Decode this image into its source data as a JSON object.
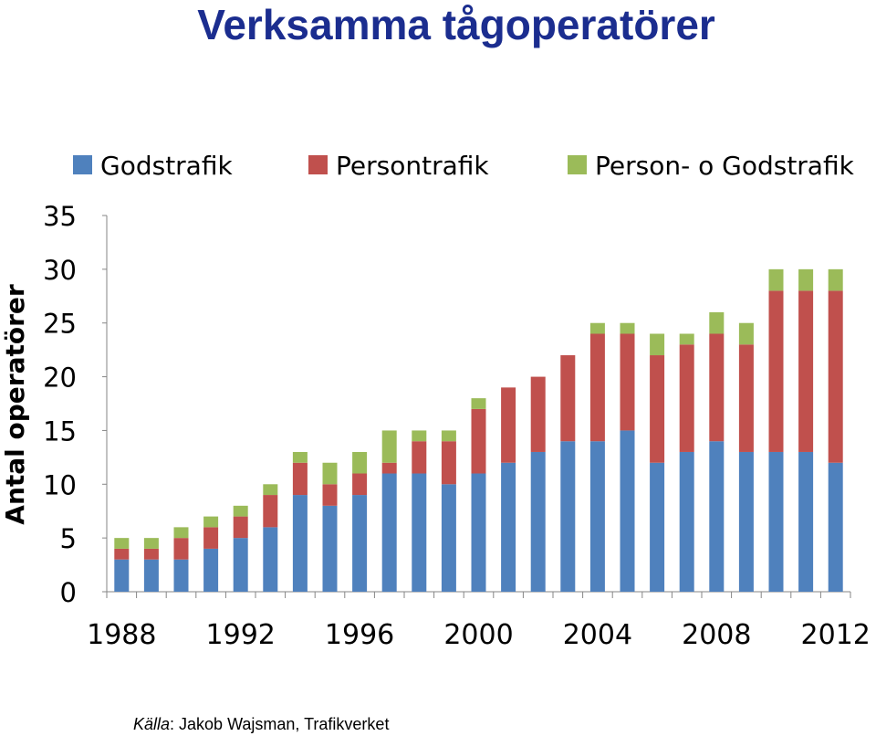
{
  "title": "Verksamma tågoperatörer",
  "source_label": "Källa",
  "source_text": ": Jakob Wajsman, Trafikverket",
  "colors": {
    "title": "#1b2d8f",
    "Godstrafik": "#4f81bd",
    "Persontrafik": "#c0504d",
    "Person- o Godstrafik": "#9bbb59"
  },
  "chart_data": {
    "type": "bar",
    "stacked": true,
    "ylabel": "Antal operatörer",
    "xlabel": "",
    "ylim": [
      0,
      35
    ],
    "yticks": [
      0,
      5,
      10,
      15,
      20,
      25,
      30,
      35
    ],
    "xtick_labels": [
      "1988",
      "1992",
      "1996",
      "2000",
      "2004",
      "2008",
      "2012"
    ],
    "legend_position": "top",
    "grid": false,
    "categories": [
      1988,
      1989,
      1990,
      1991,
      1992,
      1993,
      1994,
      1995,
      1996,
      1997,
      1998,
      1999,
      2000,
      2001,
      2002,
      2003,
      2004,
      2005,
      2006,
      2007,
      2008,
      2009,
      2010,
      2011,
      2012
    ],
    "series": [
      {
        "name": "Godstrafik",
        "values": [
          3,
          3,
          3,
          4,
          5,
          6,
          9,
          8,
          9,
          11,
          11,
          10,
          11,
          12,
          13,
          14,
          14,
          15,
          12,
          13,
          14,
          13,
          13,
          13,
          12
        ]
      },
      {
        "name": "Persontrafik",
        "values": [
          1,
          1,
          2,
          2,
          2,
          3,
          3,
          2,
          2,
          1,
          3,
          4,
          6,
          7,
          7,
          8,
          10,
          9,
          10,
          10,
          10,
          10,
          15,
          15,
          16
        ]
      },
      {
        "name": "Person- o Godstrafik",
        "values": [
          1,
          1,
          1,
          1,
          1,
          1,
          1,
          2,
          2,
          3,
          1,
          1,
          1,
          0,
          0,
          0,
          1,
          1,
          2,
          1,
          2,
          2,
          2,
          2,
          2
        ]
      }
    ]
  }
}
